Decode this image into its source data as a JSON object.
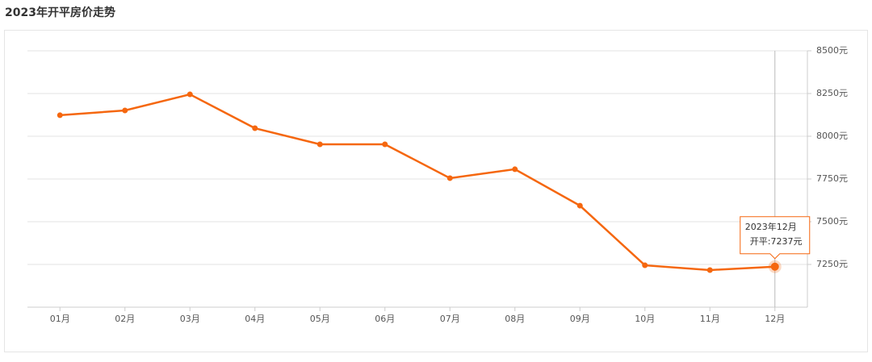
{
  "chart_data": {
    "type": "line",
    "title": "2023年开平房价走势",
    "categories": [
      "01月",
      "02月",
      "03月",
      "04月",
      "05月",
      "06月",
      "07月",
      "08月",
      "09月",
      "10月",
      "11月",
      "12月"
    ],
    "series": [
      {
        "name": "开平",
        "color": "#f5670f",
        "values": [
          8123,
          8151,
          8245,
          8047,
          7953,
          7953,
          7755,
          7807,
          7594,
          7245,
          7217,
          7237
        ]
      }
    ],
    "ylim": [
      7000,
      8500
    ],
    "yticks": [
      {
        "value": 7250,
        "label": "7250元"
      },
      {
        "value": 7500,
        "label": "7500元"
      },
      {
        "value": 7750,
        "label": "7750元"
      },
      {
        "value": 8000,
        "label": "8000元"
      },
      {
        "value": 8250,
        "label": "8250元"
      },
      {
        "value": 8500,
        "label": "8500元"
      }
    ],
    "grid": true,
    "tooltip": {
      "title": "2023年12月",
      "label": "开平:7237元"
    }
  }
}
